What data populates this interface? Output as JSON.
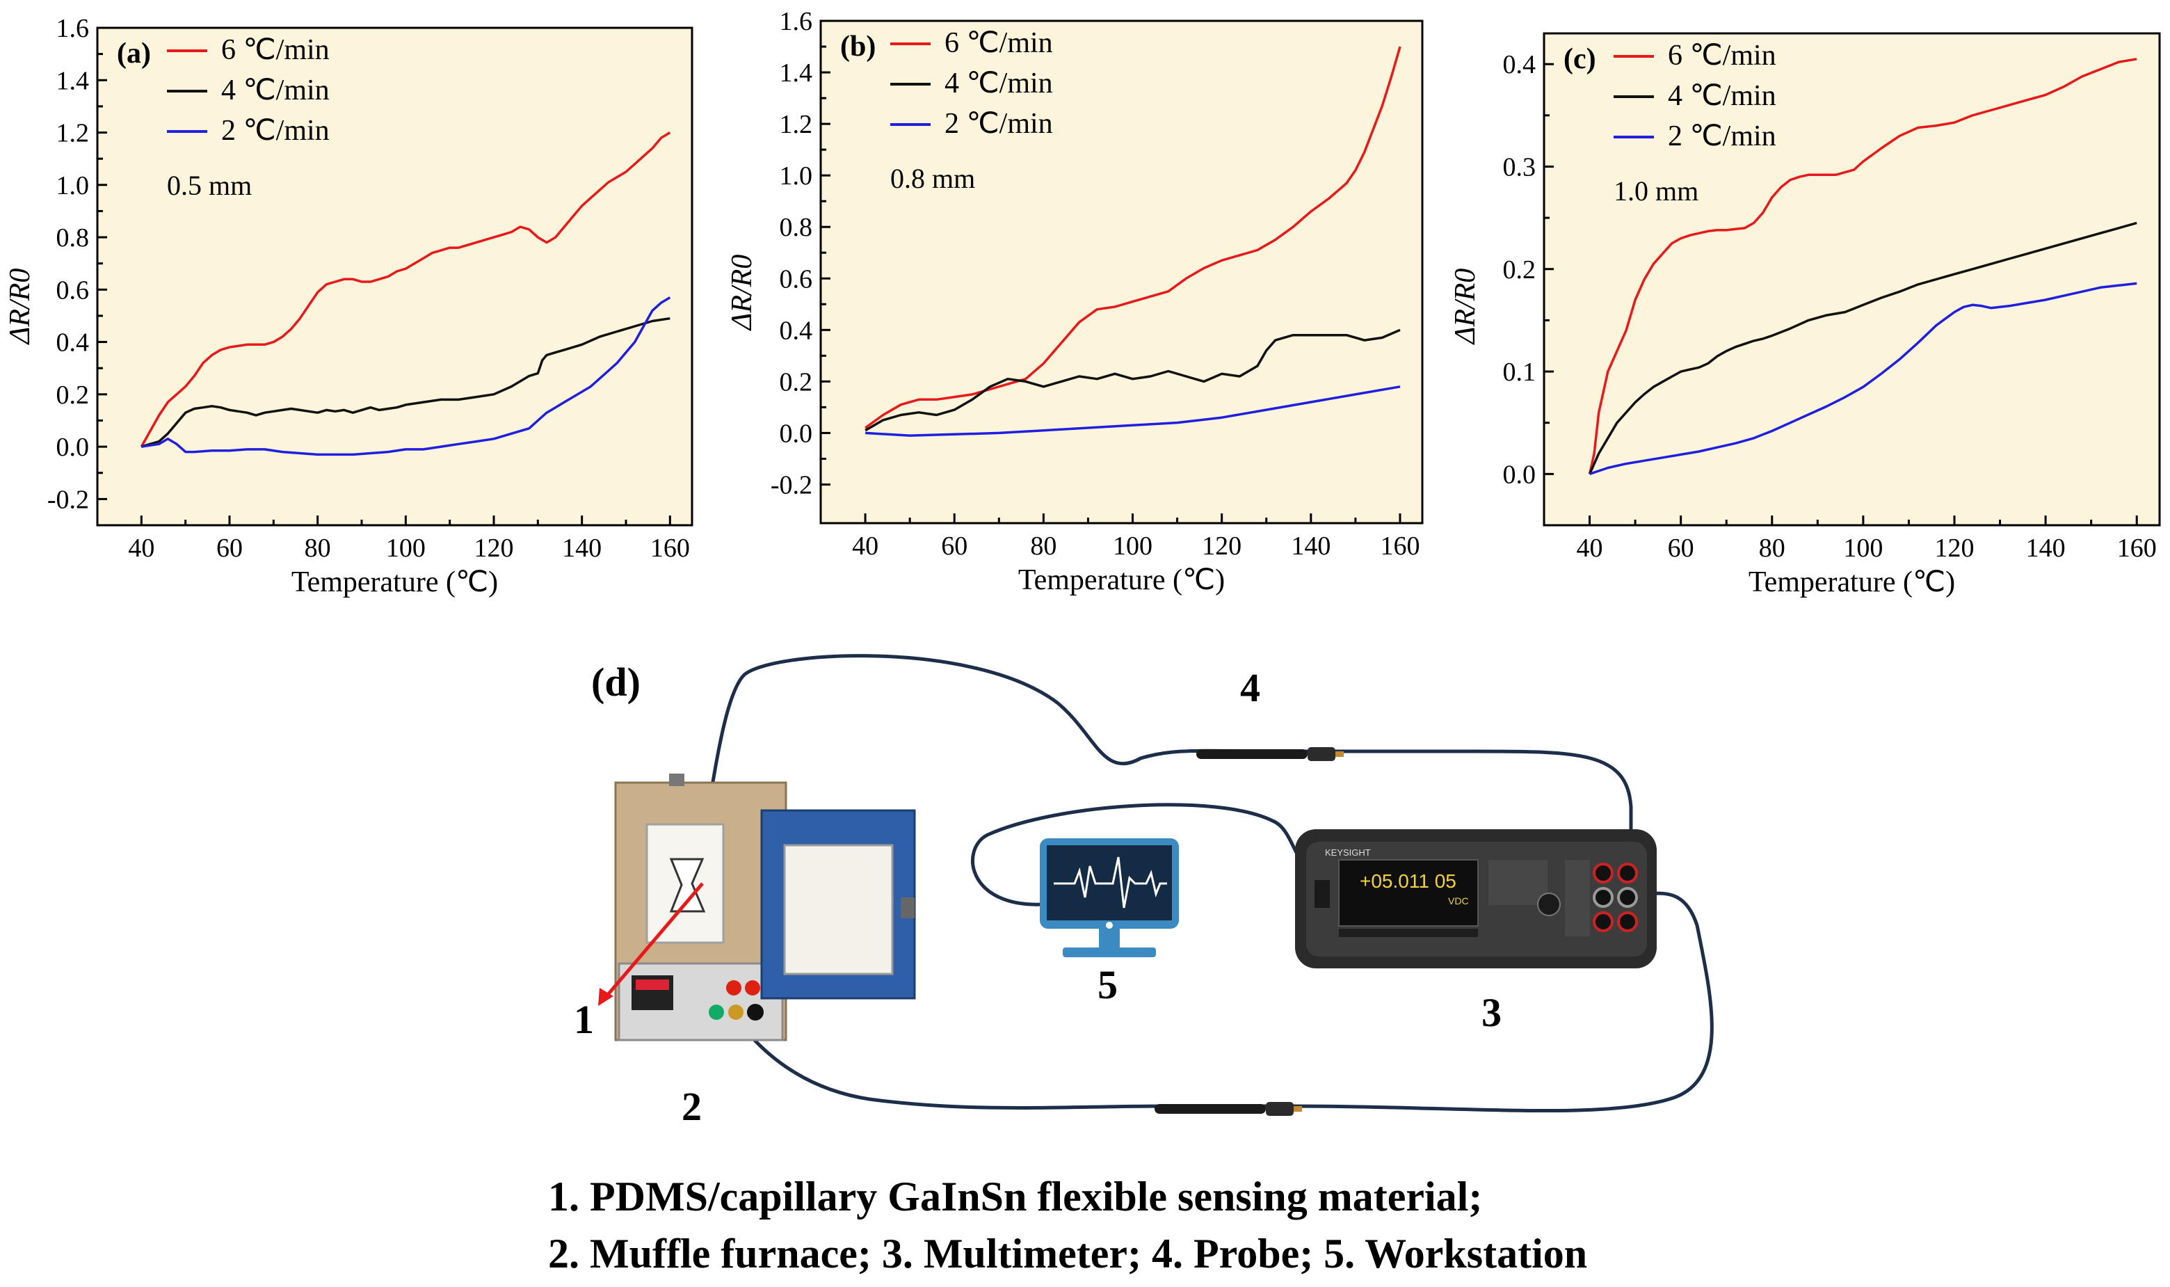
{
  "chart_data": [
    {
      "type": "line",
      "panel": "(a)",
      "annotation": "0.5 mm",
      "xlabel": "Temperature (℃)",
      "ylabel": "ΔR/R0",
      "xlim": [
        30,
        165
      ],
      "ylim": [
        -0.3,
        1.6
      ],
      "xticks": [
        40,
        60,
        80,
        100,
        120,
        140,
        160
      ],
      "yticks": [
        -0.2,
        0.0,
        0.2,
        0.4,
        0.6,
        0.8,
        1.0,
        1.2,
        1.4,
        1.6
      ],
      "legend_position": "top-left",
      "series": [
        {
          "name": "6 ℃/min",
          "color": "#e8191b",
          "x": [
            40,
            42,
            44,
            46,
            48,
            50,
            52,
            54,
            56,
            58,
            60,
            62,
            64,
            66,
            68,
            70,
            72,
            74,
            76,
            78,
            80,
            82,
            84,
            86,
            88,
            90,
            92,
            94,
            96,
            98,
            100,
            102,
            104,
            106,
            108,
            110,
            112,
            114,
            116,
            118,
            120,
            122,
            124,
            126,
            128,
            130,
            132,
            134,
            136,
            138,
            140,
            142,
            144,
            146,
            148,
            150,
            152,
            154,
            156,
            158,
            160
          ],
          "y": [
            0,
            0.06,
            0.12,
            0.17,
            0.2,
            0.23,
            0.27,
            0.32,
            0.35,
            0.37,
            0.38,
            0.385,
            0.39,
            0.39,
            0.39,
            0.4,
            0.42,
            0.45,
            0.49,
            0.54,
            0.59,
            0.62,
            0.63,
            0.64,
            0.64,
            0.63,
            0.63,
            0.64,
            0.65,
            0.67,
            0.68,
            0.7,
            0.72,
            0.74,
            0.75,
            0.76,
            0.76,
            0.77,
            0.78,
            0.79,
            0.8,
            0.81,
            0.82,
            0.84,
            0.83,
            0.8,
            0.78,
            0.8,
            0.84,
            0.88,
            0.92,
            0.95,
            0.98,
            1.01,
            1.03,
            1.05,
            1.08,
            1.11,
            1.14,
            1.18,
            1.2
          ]
        },
        {
          "name": "4 ℃/min",
          "color": "#111111",
          "x": [
            40,
            42,
            44,
            46,
            48,
            50,
            52,
            54,
            56,
            58,
            60,
            62,
            64,
            66,
            68,
            70,
            72,
            74,
            76,
            78,
            80,
            82,
            84,
            86,
            88,
            90,
            92,
            94,
            96,
            98,
            100,
            104,
            108,
            112,
            116,
            120,
            124,
            128,
            130,
            131,
            132,
            134,
            136,
            140,
            144,
            148,
            152,
            156,
            160
          ],
          "y": [
            0,
            0.01,
            0.02,
            0.05,
            0.09,
            0.13,
            0.145,
            0.15,
            0.155,
            0.15,
            0.14,
            0.135,
            0.13,
            0.12,
            0.13,
            0.135,
            0.14,
            0.145,
            0.14,
            0.135,
            0.13,
            0.14,
            0.135,
            0.14,
            0.13,
            0.14,
            0.15,
            0.14,
            0.145,
            0.15,
            0.16,
            0.17,
            0.18,
            0.18,
            0.19,
            0.2,
            0.23,
            0.27,
            0.28,
            0.33,
            0.35,
            0.36,
            0.37,
            0.39,
            0.42,
            0.44,
            0.46,
            0.48,
            0.49
          ]
        },
        {
          "name": "2 ℃/min",
          "color": "#1f1fe0",
          "x": [
            40,
            42,
            44,
            46,
            48,
            50,
            52,
            56,
            60,
            64,
            68,
            72,
            76,
            80,
            84,
            88,
            92,
            96,
            100,
            104,
            108,
            112,
            116,
            120,
            124,
            128,
            130,
            132,
            134,
            136,
            138,
            140,
            142,
            144,
            146,
            148,
            150,
            152,
            154,
            156,
            158,
            160
          ],
          "y": [
            0,
            0.005,
            0.01,
            0.03,
            0.01,
            -0.02,
            -0.02,
            -0.015,
            -0.015,
            -0.01,
            -0.01,
            -0.02,
            -0.025,
            -0.03,
            -0.03,
            -0.03,
            -0.025,
            -0.02,
            -0.01,
            -0.01,
            0.0,
            0.01,
            0.02,
            0.03,
            0.05,
            0.07,
            0.1,
            0.13,
            0.15,
            0.17,
            0.19,
            0.21,
            0.23,
            0.26,
            0.29,
            0.32,
            0.36,
            0.4,
            0.46,
            0.52,
            0.55,
            0.57
          ]
        }
      ]
    },
    {
      "type": "line",
      "panel": "(b)",
      "annotation": "0.8 mm",
      "xlabel": "Temperature (℃)",
      "ylabel": "ΔR/R0",
      "xlim": [
        30,
        165
      ],
      "ylim": [
        -0.35,
        1.6
      ],
      "xticks": [
        40,
        60,
        80,
        100,
        120,
        140,
        160
      ],
      "yticks": [
        -0.2,
        0.0,
        0.2,
        0.4,
        0.6,
        0.8,
        1.0,
        1.2,
        1.4,
        1.6
      ],
      "legend_position": "top-left",
      "series": [
        {
          "name": "6 ℃/min",
          "color": "#e8191b",
          "x": [
            40,
            44,
            48,
            52,
            56,
            60,
            64,
            68,
            72,
            76,
            80,
            84,
            88,
            92,
            96,
            100,
            104,
            108,
            112,
            116,
            120,
            124,
            128,
            132,
            136,
            140,
            144,
            148,
            150,
            152,
            154,
            156,
            158,
            160
          ],
          "y": [
            0.02,
            0.07,
            0.11,
            0.13,
            0.13,
            0.14,
            0.15,
            0.17,
            0.19,
            0.21,
            0.27,
            0.35,
            0.43,
            0.48,
            0.49,
            0.51,
            0.53,
            0.55,
            0.6,
            0.64,
            0.67,
            0.69,
            0.71,
            0.75,
            0.8,
            0.86,
            0.91,
            0.97,
            1.02,
            1.09,
            1.18,
            1.27,
            1.38,
            1.5
          ]
        },
        {
          "name": "4 ℃/min",
          "color": "#111111",
          "x": [
            40,
            44,
            48,
            52,
            56,
            60,
            64,
            68,
            72,
            76,
            80,
            84,
            88,
            92,
            96,
            100,
            104,
            108,
            112,
            116,
            120,
            124,
            128,
            130,
            132,
            136,
            140,
            144,
            148,
            152,
            156,
            160
          ],
          "y": [
            0.01,
            0.05,
            0.07,
            0.08,
            0.07,
            0.09,
            0.13,
            0.18,
            0.21,
            0.2,
            0.18,
            0.2,
            0.22,
            0.21,
            0.23,
            0.21,
            0.22,
            0.24,
            0.22,
            0.2,
            0.23,
            0.22,
            0.26,
            0.32,
            0.36,
            0.38,
            0.38,
            0.38,
            0.38,
            0.36,
            0.37,
            0.4
          ]
        },
        {
          "name": "2 ℃/min",
          "color": "#1f1fe0",
          "x": [
            40,
            50,
            60,
            70,
            80,
            90,
            100,
            110,
            120,
            130,
            140,
            150,
            160
          ],
          "y": [
            0.0,
            -0.01,
            -0.005,
            0.0,
            0.01,
            0.02,
            0.03,
            0.04,
            0.06,
            0.09,
            0.12,
            0.15,
            0.18
          ]
        }
      ]
    },
    {
      "type": "line",
      "panel": "(c)",
      "annotation": "1.0 mm",
      "xlabel": "Temperature (℃)",
      "ylabel": "ΔR/R0",
      "xlim": [
        30,
        165
      ],
      "ylim": [
        -0.05,
        0.43
      ],
      "xticks": [
        40,
        60,
        80,
        100,
        120,
        140,
        160
      ],
      "yticks": [
        0.0,
        0.1,
        0.2,
        0.3,
        0.4
      ],
      "legend_position": "top-left",
      "series": [
        {
          "name": "6 ℃/min",
          "color": "#e8191b",
          "x": [
            40,
            41,
            42,
            44,
            46,
            48,
            50,
            52,
            54,
            56,
            58,
            60,
            62,
            64,
            66,
            68,
            70,
            72,
            74,
            76,
            78,
            80,
            82,
            84,
            86,
            88,
            90,
            94,
            98,
            100,
            104,
            108,
            112,
            116,
            120,
            124,
            128,
            132,
            136,
            140,
            144,
            148,
            152,
            156,
            160
          ],
          "y": [
            0.0,
            0.02,
            0.06,
            0.1,
            0.12,
            0.14,
            0.17,
            0.19,
            0.205,
            0.215,
            0.225,
            0.23,
            0.233,
            0.235,
            0.237,
            0.238,
            0.238,
            0.239,
            0.24,
            0.245,
            0.255,
            0.27,
            0.28,
            0.287,
            0.29,
            0.292,
            0.292,
            0.292,
            0.297,
            0.305,
            0.318,
            0.33,
            0.338,
            0.34,
            0.343,
            0.35,
            0.355,
            0.36,
            0.365,
            0.37,
            0.378,
            0.388,
            0.395,
            0.402,
            0.405
          ]
        },
        {
          "name": "4 ℃/min",
          "color": "#111111",
          "x": [
            40,
            42,
            44,
            46,
            48,
            50,
            52,
            54,
            56,
            58,
            60,
            62,
            64,
            66,
            68,
            70,
            72,
            74,
            76,
            78,
            80,
            84,
            88,
            92,
            96,
            100,
            104,
            108,
            112,
            116,
            120,
            124,
            128,
            132,
            136,
            140,
            144,
            148,
            152,
            156,
            160
          ],
          "y": [
            0.0,
            0.02,
            0.035,
            0.05,
            0.06,
            0.07,
            0.078,
            0.085,
            0.09,
            0.095,
            0.1,
            0.102,
            0.104,
            0.108,
            0.115,
            0.12,
            0.124,
            0.127,
            0.13,
            0.132,
            0.135,
            0.142,
            0.15,
            0.155,
            0.158,
            0.165,
            0.172,
            0.178,
            0.185,
            0.19,
            0.195,
            0.2,
            0.205,
            0.21,
            0.215,
            0.22,
            0.225,
            0.23,
            0.235,
            0.24,
            0.245
          ]
        },
        {
          "name": "2 ℃/min",
          "color": "#1f1fe0",
          "x": [
            40,
            44,
            48,
            52,
            56,
            60,
            64,
            68,
            72,
            76,
            80,
            84,
            88,
            92,
            96,
            100,
            104,
            108,
            112,
            116,
            120,
            122,
            124,
            126,
            128,
            132,
            136,
            140,
            144,
            148,
            152,
            156,
            160
          ],
          "y": [
            0.0,
            0.006,
            0.01,
            0.013,
            0.016,
            0.019,
            0.022,
            0.026,
            0.03,
            0.035,
            0.042,
            0.05,
            0.058,
            0.066,
            0.075,
            0.085,
            0.098,
            0.112,
            0.128,
            0.145,
            0.158,
            0.163,
            0.165,
            0.164,
            0.162,
            0.164,
            0.167,
            0.17,
            0.174,
            0.178,
            0.182,
            0.184,
            0.186
          ]
        }
      ]
    }
  ],
  "diagram": {
    "panel": "(d)",
    "labels": [
      "1",
      "2",
      "3",
      "4",
      "5"
    ],
    "multimeter_reading": "+05.011 05",
    "multimeter_unit": "VDC",
    "multimeter_brand": "KEYSIGHT",
    "caption_line1": "1. PDMS/capillary GaInSn flexible sensing material;",
    "caption_line2": "2. Muffle furnace; 3. Multimeter; 4. Probe; 5. Workstation"
  }
}
